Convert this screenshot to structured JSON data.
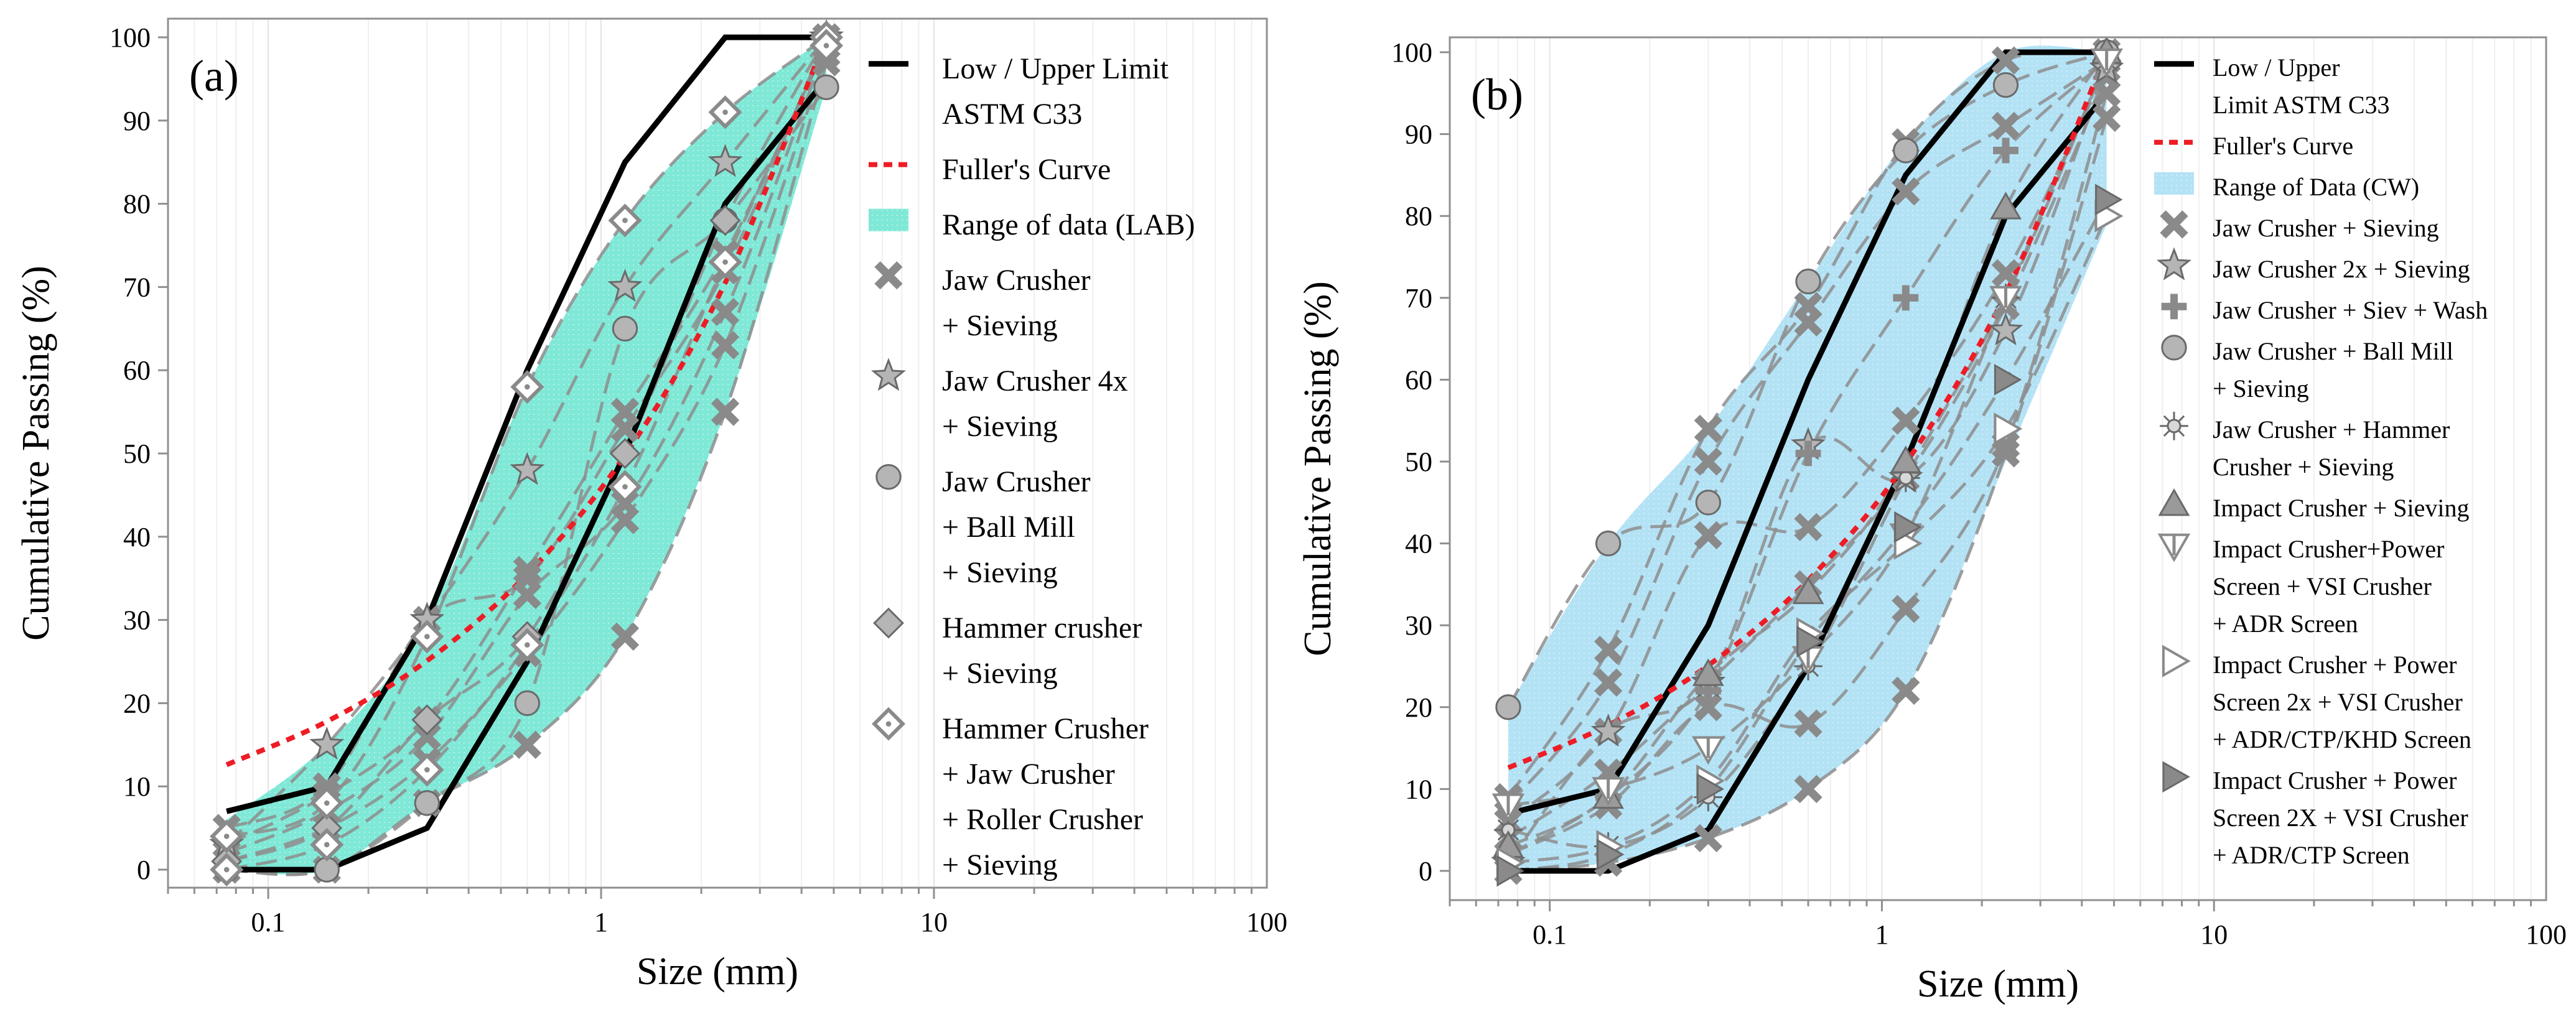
{
  "colors": {
    "lab_fill": "#7fe8d6",
    "cw_fill": "#b3e2f5",
    "marker_fill": "#b5b5b5",
    "marker_stroke": "#6a6a6a",
    "limit": "#000000",
    "fuller": "#ee1c25",
    "sample_line": "#8d8d8d"
  },
  "chart_data": [
    {
      "type": "scatter",
      "panel_label": "(a)",
      "xlabel": "Size (mm)",
      "ylabel": "Cumulative Passing (%)",
      "x_scale": "log",
      "xlim": [
        0.05,
        100
      ],
      "ylim": [
        0,
        100
      ],
      "x_ticks": [
        0.1,
        1,
        10,
        100
      ],
      "x_tick_labels": [
        "0.1",
        "1",
        "10",
        "100"
      ],
      "y_ticks": [
        0,
        10,
        20,
        30,
        40,
        50,
        60,
        70,
        80,
        90,
        100
      ],
      "y_tick_labels": [
        "0",
        "10",
        "20",
        "30",
        "40",
        "50",
        "60",
        "70",
        "80",
        "90",
        "100"
      ],
      "grid": "vertical log gridlines",
      "legend_position": "right",
      "sieves": [
        0.075,
        0.15,
        0.3,
        0.6,
        1.18,
        2.36,
        4.75
      ],
      "limits": {
        "label": [
          "Low / Upper Limit",
          "ASTM C33"
        ],
        "lower": [
          [
            0.075,
            0
          ],
          [
            0.15,
            0
          ],
          [
            0.3,
            5
          ],
          [
            0.6,
            25
          ],
          [
            1.18,
            50
          ],
          [
            2.36,
            80
          ],
          [
            4.75,
            95
          ]
        ],
        "upper": [
          [
            0.075,
            7
          ],
          [
            0.15,
            10
          ],
          [
            0.3,
            30
          ],
          [
            0.6,
            60
          ],
          [
            1.18,
            85
          ],
          [
            2.36,
            100
          ],
          [
            4.75,
            100
          ]
        ]
      },
      "fuller": {
        "label": [
          "Fuller's Curve"
        ],
        "points": [
          [
            0.075,
            12.6
          ],
          [
            0.15,
            17.8
          ],
          [
            0.3,
            25.1
          ],
          [
            0.6,
            35.5
          ],
          [
            1.18,
            49.8
          ],
          [
            2.36,
            70.5
          ],
          [
            4.75,
            100
          ]
        ]
      },
      "range": {
        "label": [
          "Range of data (LAB)"
        ],
        "lower": [
          [
            0.075,
            0
          ],
          [
            0.15,
            0
          ],
          [
            0.3,
            8
          ],
          [
            0.6,
            15
          ],
          [
            1.18,
            28
          ],
          [
            2.36,
            55
          ],
          [
            4.75,
            94
          ]
        ],
        "upper": [
          [
            0.075,
            6
          ],
          [
            0.15,
            15
          ],
          [
            0.3,
            30
          ],
          [
            0.6,
            58
          ],
          [
            1.18,
            78
          ],
          [
            2.36,
            91
          ],
          [
            4.75,
            100
          ]
        ]
      },
      "series": [
        {
          "name": [
            "Jaw Crusher",
            "+ Sieving"
          ],
          "marker": "x",
          "curves": [
            [
              0,
              0,
              8,
              15,
              28,
              55,
              97
            ],
            [
              1,
              5,
              13,
              26,
              42,
              63,
              98
            ],
            [
              2,
              7,
              16,
              33,
              44,
              67,
              99
            ],
            [
              3,
              9,
              18,
              36,
              55,
              74,
              99
            ],
            [
              5,
              10,
              30,
              35,
              53,
              72,
              100
            ]
          ]
        },
        {
          "name": [
            "Jaw Crusher 4x",
            "+ Sieving"
          ],
          "marker": "star",
          "curves": [
            [
              3,
              15,
              30,
              48,
              70,
              85,
              100
            ]
          ]
        },
        {
          "name": [
            "Jaw Crusher",
            "+ Ball Mill",
            "+ Sieving"
          ],
          "marker": "circle",
          "curves": [
            [
              0,
              0,
              8,
              20,
              65,
              78,
              94
            ]
          ]
        },
        {
          "name": [
            "Hammer crusher",
            "+ Sieving"
          ],
          "marker": "diamond",
          "curves": [
            [
              1,
              5,
              18,
              28,
              50,
              78,
              100
            ]
          ]
        },
        {
          "name": [
            "Hammer Crusher",
            "+ Jaw Crusher",
            "+ Roller Crusher",
            "+ Sieving"
          ],
          "marker": "diamond-dot",
          "curves": [
            [
              4,
              8,
              28,
              58,
              78,
              91,
              100
            ],
            [
              0,
              3,
              12,
              27,
              46,
              73,
              99
            ]
          ]
        }
      ]
    },
    {
      "type": "scatter",
      "panel_label": "(b)",
      "xlabel": "Size (mm)",
      "ylabel": "Cumulative Passing (%)",
      "x_scale": "log",
      "xlim": [
        0.05,
        100
      ],
      "ylim": [
        0,
        100
      ],
      "x_ticks": [
        0.1,
        1,
        10,
        100
      ],
      "x_tick_labels": [
        "0.1",
        "1",
        "10",
        "100"
      ],
      "y_ticks": [
        0,
        10,
        20,
        30,
        40,
        50,
        60,
        70,
        80,
        90,
        100
      ],
      "y_tick_labels": [
        "0",
        "10",
        "20",
        "30",
        "40",
        "50",
        "60",
        "70",
        "80",
        "90",
        "100"
      ],
      "grid": "vertical log gridlines",
      "legend_position": "right",
      "sieves": [
        0.075,
        0.15,
        0.3,
        0.6,
        1.18,
        2.36,
        4.75
      ],
      "limits": {
        "label": [
          "Low / Upper",
          "Limit ASTM C33"
        ],
        "lower": [
          [
            0.075,
            0
          ],
          [
            0.15,
            0
          ],
          [
            0.3,
            5
          ],
          [
            0.6,
            25
          ],
          [
            1.18,
            50
          ],
          [
            2.36,
            80
          ],
          [
            4.75,
            95
          ]
        ],
        "upper": [
          [
            0.075,
            7
          ],
          [
            0.15,
            10
          ],
          [
            0.3,
            30
          ],
          [
            0.6,
            60
          ],
          [
            1.18,
            85
          ],
          [
            2.36,
            100
          ],
          [
            4.75,
            100
          ]
        ]
      },
      "fuller": {
        "label": [
          "Fuller's Curve"
        ],
        "points": [
          [
            0.075,
            12.6
          ],
          [
            0.15,
            17.8
          ],
          [
            0.3,
            25.1
          ],
          [
            0.6,
            35.5
          ],
          [
            1.18,
            49.8
          ],
          [
            2.36,
            70.5
          ],
          [
            4.75,
            100
          ]
        ]
      },
      "range": {
        "label": [
          "Range of Data (CW)"
        ],
        "lower": [
          [
            0.075,
            0
          ],
          [
            0.15,
            1
          ],
          [
            0.3,
            4
          ],
          [
            0.6,
            10
          ],
          [
            1.18,
            22
          ],
          [
            2.36,
            50
          ],
          [
            4.75,
            79
          ]
        ],
        "upper": [
          [
            0.075,
            20
          ],
          [
            0.15,
            40
          ],
          [
            0.3,
            54
          ],
          [
            0.6,
            72
          ],
          [
            1.18,
            89
          ],
          [
            2.36,
            100
          ],
          [
            4.75,
            100
          ]
        ]
      },
      "series": [
        {
          "name": [
            "Jaw Crusher + Sieving"
          ],
          "marker": "x",
          "curves": [
            [
              0,
              1,
              4,
              10,
              22,
              51,
              92
            ],
            [
              2,
              8,
              20,
              18,
              32,
              52,
              95
            ],
            [
              4,
              12,
              23,
              35,
              48,
              69,
              97
            ],
            [
              6,
              17,
              41,
              42,
              55,
              73,
              98
            ],
            [
              8,
              23,
              50,
              67,
              83,
              91,
              99
            ],
            [
              9,
              27,
              54,
              69,
              89,
              99,
              100
            ]
          ]
        },
        {
          "name": [
            "Jaw Crusher 2x + Sieving"
          ],
          "marker": "star",
          "curves": [
            [
              1,
              17,
              23,
              52,
              48,
              66,
              98
            ]
          ]
        },
        {
          "name": [
            "Jaw Crusher + Siev + Wash"
          ],
          "marker": "plus",
          "curves": [
            [
              2,
              9,
              22,
              51,
              70,
              88,
              99
            ]
          ]
        },
        {
          "name": [
            "Jaw Crusher + Ball Mill",
            "+ Sieving"
          ],
          "marker": "circle",
          "curves": [
            [
              20,
              40,
              45,
              72,
              88,
              96,
              100
            ]
          ]
        },
        {
          "name": [
            "Jaw Crusher  + Hammer",
            "Crusher  + Sieving"
          ],
          "marker": "sun",
          "curves": [
            [
              5,
              3,
              9,
              25,
              48,
              70,
              99
            ]
          ]
        },
        {
          "name": [
            "Impact Crusher + Sieving"
          ],
          "marker": "triangle",
          "curves": [
            [
              3,
              9,
              24,
              34,
              50,
              81,
              100
            ]
          ]
        },
        {
          "name": [
            "Impact Crusher+Power",
            "Screen + VSI Crusher",
            "+ ADR Screen"
          ],
          "marker": "triangle-down",
          "curves": [
            [
              8,
              10,
              15,
              26,
              41,
              70,
              99
            ]
          ]
        },
        {
          "name": [
            "Impact Crusher + Power",
            "Screen 2x + VSI Crusher",
            "+ ADR/CTP/KHD Screen"
          ],
          "marker": "triangle-right-open",
          "curves": [
            [
              1,
              3,
              11,
              29,
              40,
              54,
              80
            ]
          ]
        },
        {
          "name": [
            "Impact Crusher + Power",
            "Screen 2X + VSI Crusher",
            "+ ADR/CTP Screen"
          ],
          "marker": "triangle-right",
          "curves": [
            [
              0,
              2,
              10,
              28,
              42,
              60,
              82
            ]
          ]
        }
      ]
    }
  ]
}
